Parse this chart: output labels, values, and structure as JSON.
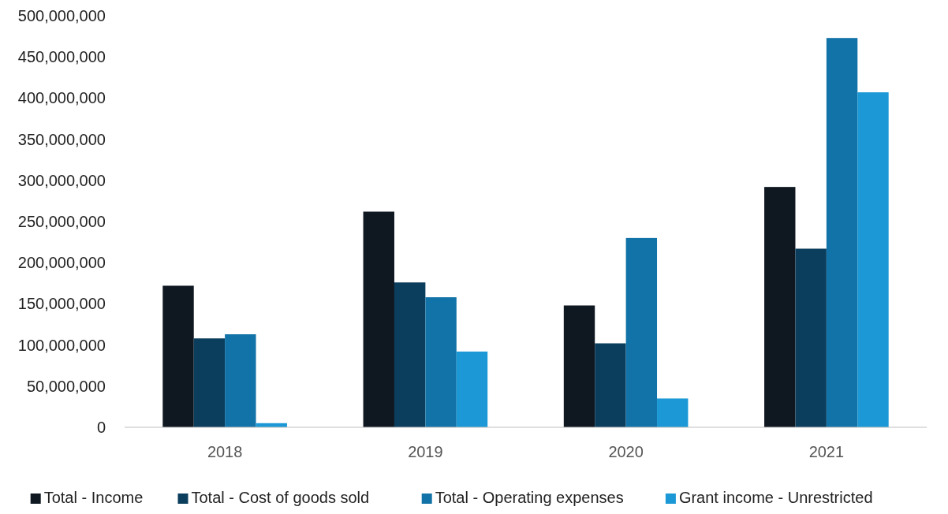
{
  "chart_data": {
    "type": "bar",
    "categories": [
      "2018",
      "2019",
      "2020",
      "2021"
    ],
    "series": [
      {
        "name": "Total - Income",
        "color": "#0f1720",
        "values": [
          172000000,
          262000000,
          148000000,
          292000000
        ]
      },
      {
        "name": "Total - Cost of goods sold",
        "color": "#0b3d5c",
        "values": [
          108000000,
          176000000,
          102000000,
          217000000
        ]
      },
      {
        "name": "Total - Operating expenses",
        "color": "#1273a8",
        "values": [
          113000000,
          158000000,
          230000000,
          473000000
        ]
      },
      {
        "name": "Grant income - Unrestricted",
        "color": "#1b98d5",
        "values": [
          5000000,
          92000000,
          35000000,
          407000000
        ]
      }
    ],
    "ylim": [
      0,
      500000000
    ],
    "yticks": [
      {
        "value": 0,
        "label": "0"
      },
      {
        "value": 50000000,
        "label": "50,000,000"
      },
      {
        "value": 100000000,
        "label": "100,000,000"
      },
      {
        "value": 150000000,
        "label": "150,000,000"
      },
      {
        "value": 200000000,
        "label": "200,000,000"
      },
      {
        "value": 250000000,
        "label": "250,000,000"
      },
      {
        "value": 300000000,
        "label": "300,000,000"
      },
      {
        "value": 350000000,
        "label": "350,000,000"
      },
      {
        "value": 400000000,
        "label": "400,000,000"
      },
      {
        "value": 450000000,
        "label": "450,000,000"
      },
      {
        "value": 500000000,
        "label": "500,000,000"
      }
    ],
    "grid": false,
    "legend": "bottom"
  }
}
